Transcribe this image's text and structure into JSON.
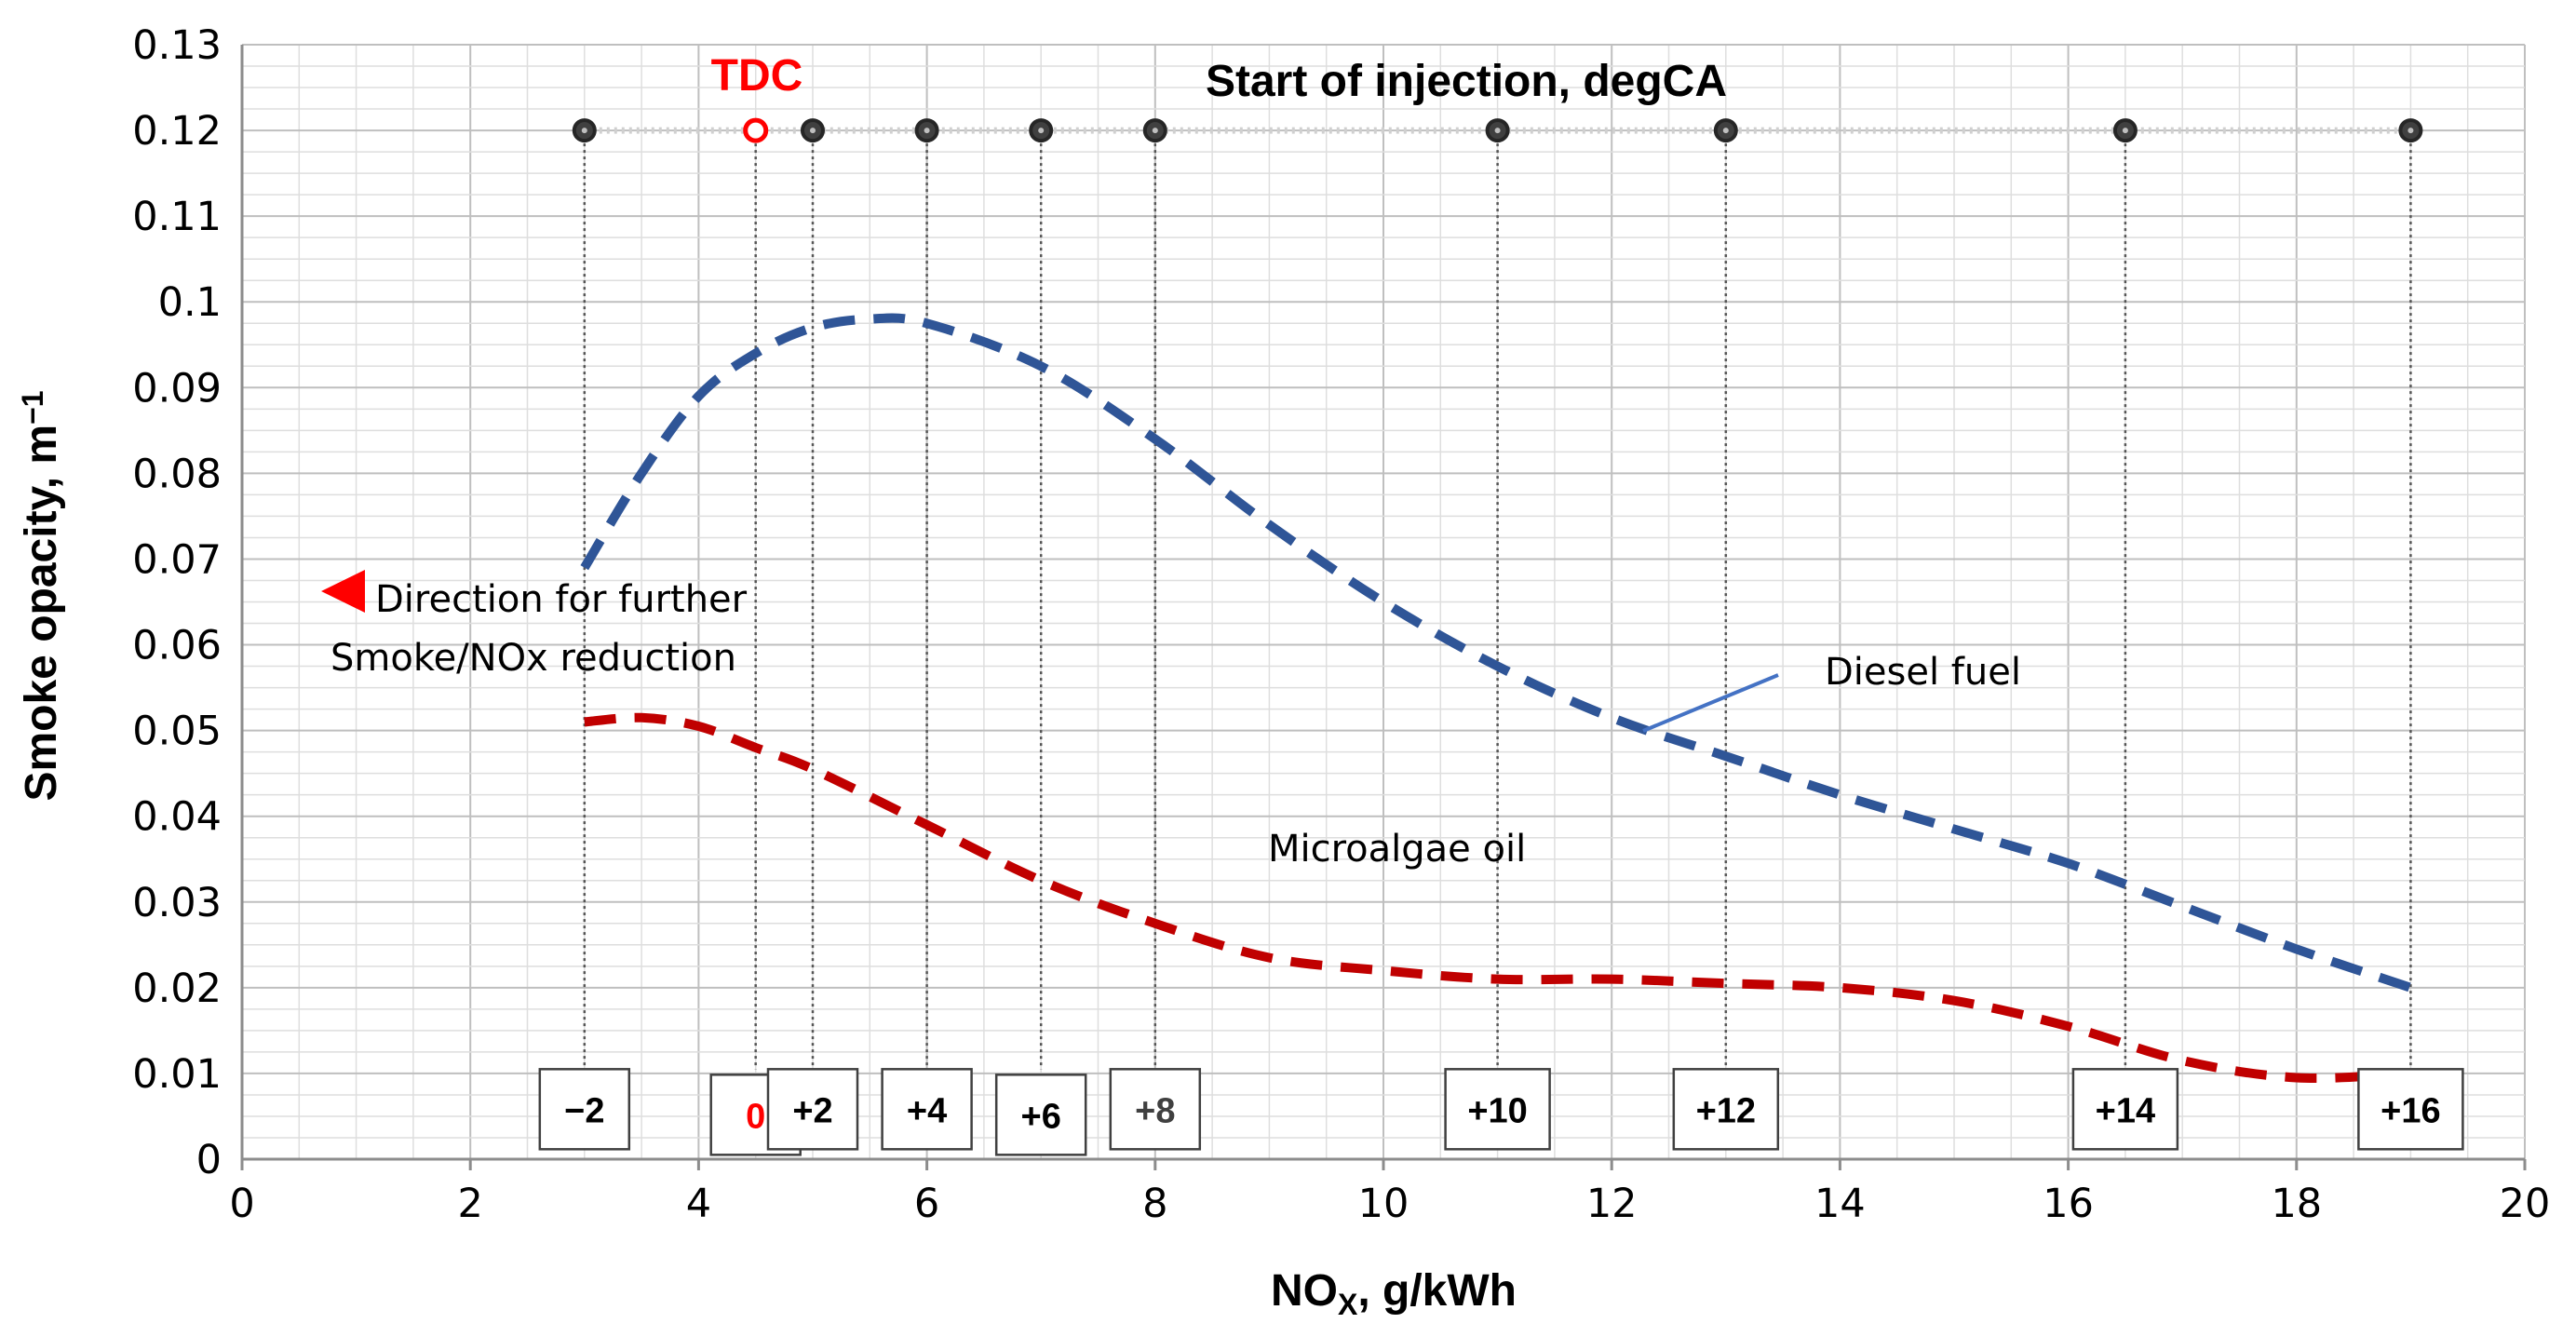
{
  "chart_data": {
    "type": "line",
    "title": "Start of injection, degCA",
    "xlabel": "NO",
    "xlabel_sub": "X",
    "xlabel_unit": ", g/kWh",
    "ylabel": "Smoke opacity, m",
    "ylabel_sup": "−1",
    "xlim": [
      0,
      20
    ],
    "ylim": [
      0,
      0.13
    ],
    "x_ticks": [
      0,
      2,
      4,
      6,
      8,
      10,
      12,
      14,
      16,
      18,
      20
    ],
    "x_tick_labels": [
      "0",
      "2",
      "4",
      "6",
      "8",
      "10",
      "12",
      "14",
      "16",
      "18",
      "20"
    ],
    "y_ticks": [
      0,
      0.01,
      0.02,
      0.03,
      0.04,
      0.05,
      0.06,
      0.07,
      0.08,
      0.09,
      0.1,
      0.11,
      0.12,
      0.13
    ],
    "y_tick_labels": [
      "0",
      "0.01",
      "0.02",
      "0.03",
      "0.04",
      "0.05",
      "0.06",
      "0.07",
      "0.08",
      "0.09",
      "0.1",
      "0.11",
      "0.12",
      "0.13"
    ],
    "grid": true,
    "series": [
      {
        "name": "Diesel fuel",
        "color": "#2f5597",
        "x": [
          3,
          3.5,
          4,
          4.5,
          5,
          5.5,
          6,
          7,
          8,
          9,
          10,
          11,
          12,
          13,
          14,
          15,
          16,
          17,
          18,
          19
        ],
        "y": [
          0.069,
          0.08,
          0.089,
          0.094,
          0.097,
          0.098,
          0.0975,
          0.0925,
          0.084,
          0.074,
          0.065,
          0.0575,
          0.0515,
          0.047,
          0.0425,
          0.0385,
          0.0345,
          0.0295,
          0.0245,
          0.02
        ]
      },
      {
        "name": "Microalgae oil",
        "color": "#c00000",
        "x": [
          3,
          3.5,
          4,
          4.5,
          5,
          6,
          7,
          8,
          9,
          10,
          11,
          12,
          13,
          14,
          15,
          16,
          17,
          18,
          19
        ],
        "y": [
          0.051,
          0.0515,
          0.0505,
          0.048,
          0.0455,
          0.039,
          0.0325,
          0.0275,
          0.0235,
          0.022,
          0.021,
          0.021,
          0.0205,
          0.02,
          0.0185,
          0.0155,
          0.0115,
          0.0095,
          0.01
        ]
      }
    ],
    "injection_timing": {
      "y": 0.12,
      "x": [
        3,
        4.5,
        5,
        6,
        7,
        8,
        11,
        13,
        16.5,
        19
      ],
      "labels": [
        "−2",
        "0",
        "+2",
        "+4",
        "+6",
        "+8",
        "+10",
        "+12",
        "+14",
        "+16"
      ],
      "highlight_label": "TDC",
      "highlight_color": "#ff0000"
    },
    "annotations": [
      {
        "text": "Diesel fuel"
      },
      {
        "text": "Microalgae oil"
      },
      {
        "text": "Direction for further"
      },
      {
        "text": "Smoke/NOx reduction"
      }
    ]
  }
}
